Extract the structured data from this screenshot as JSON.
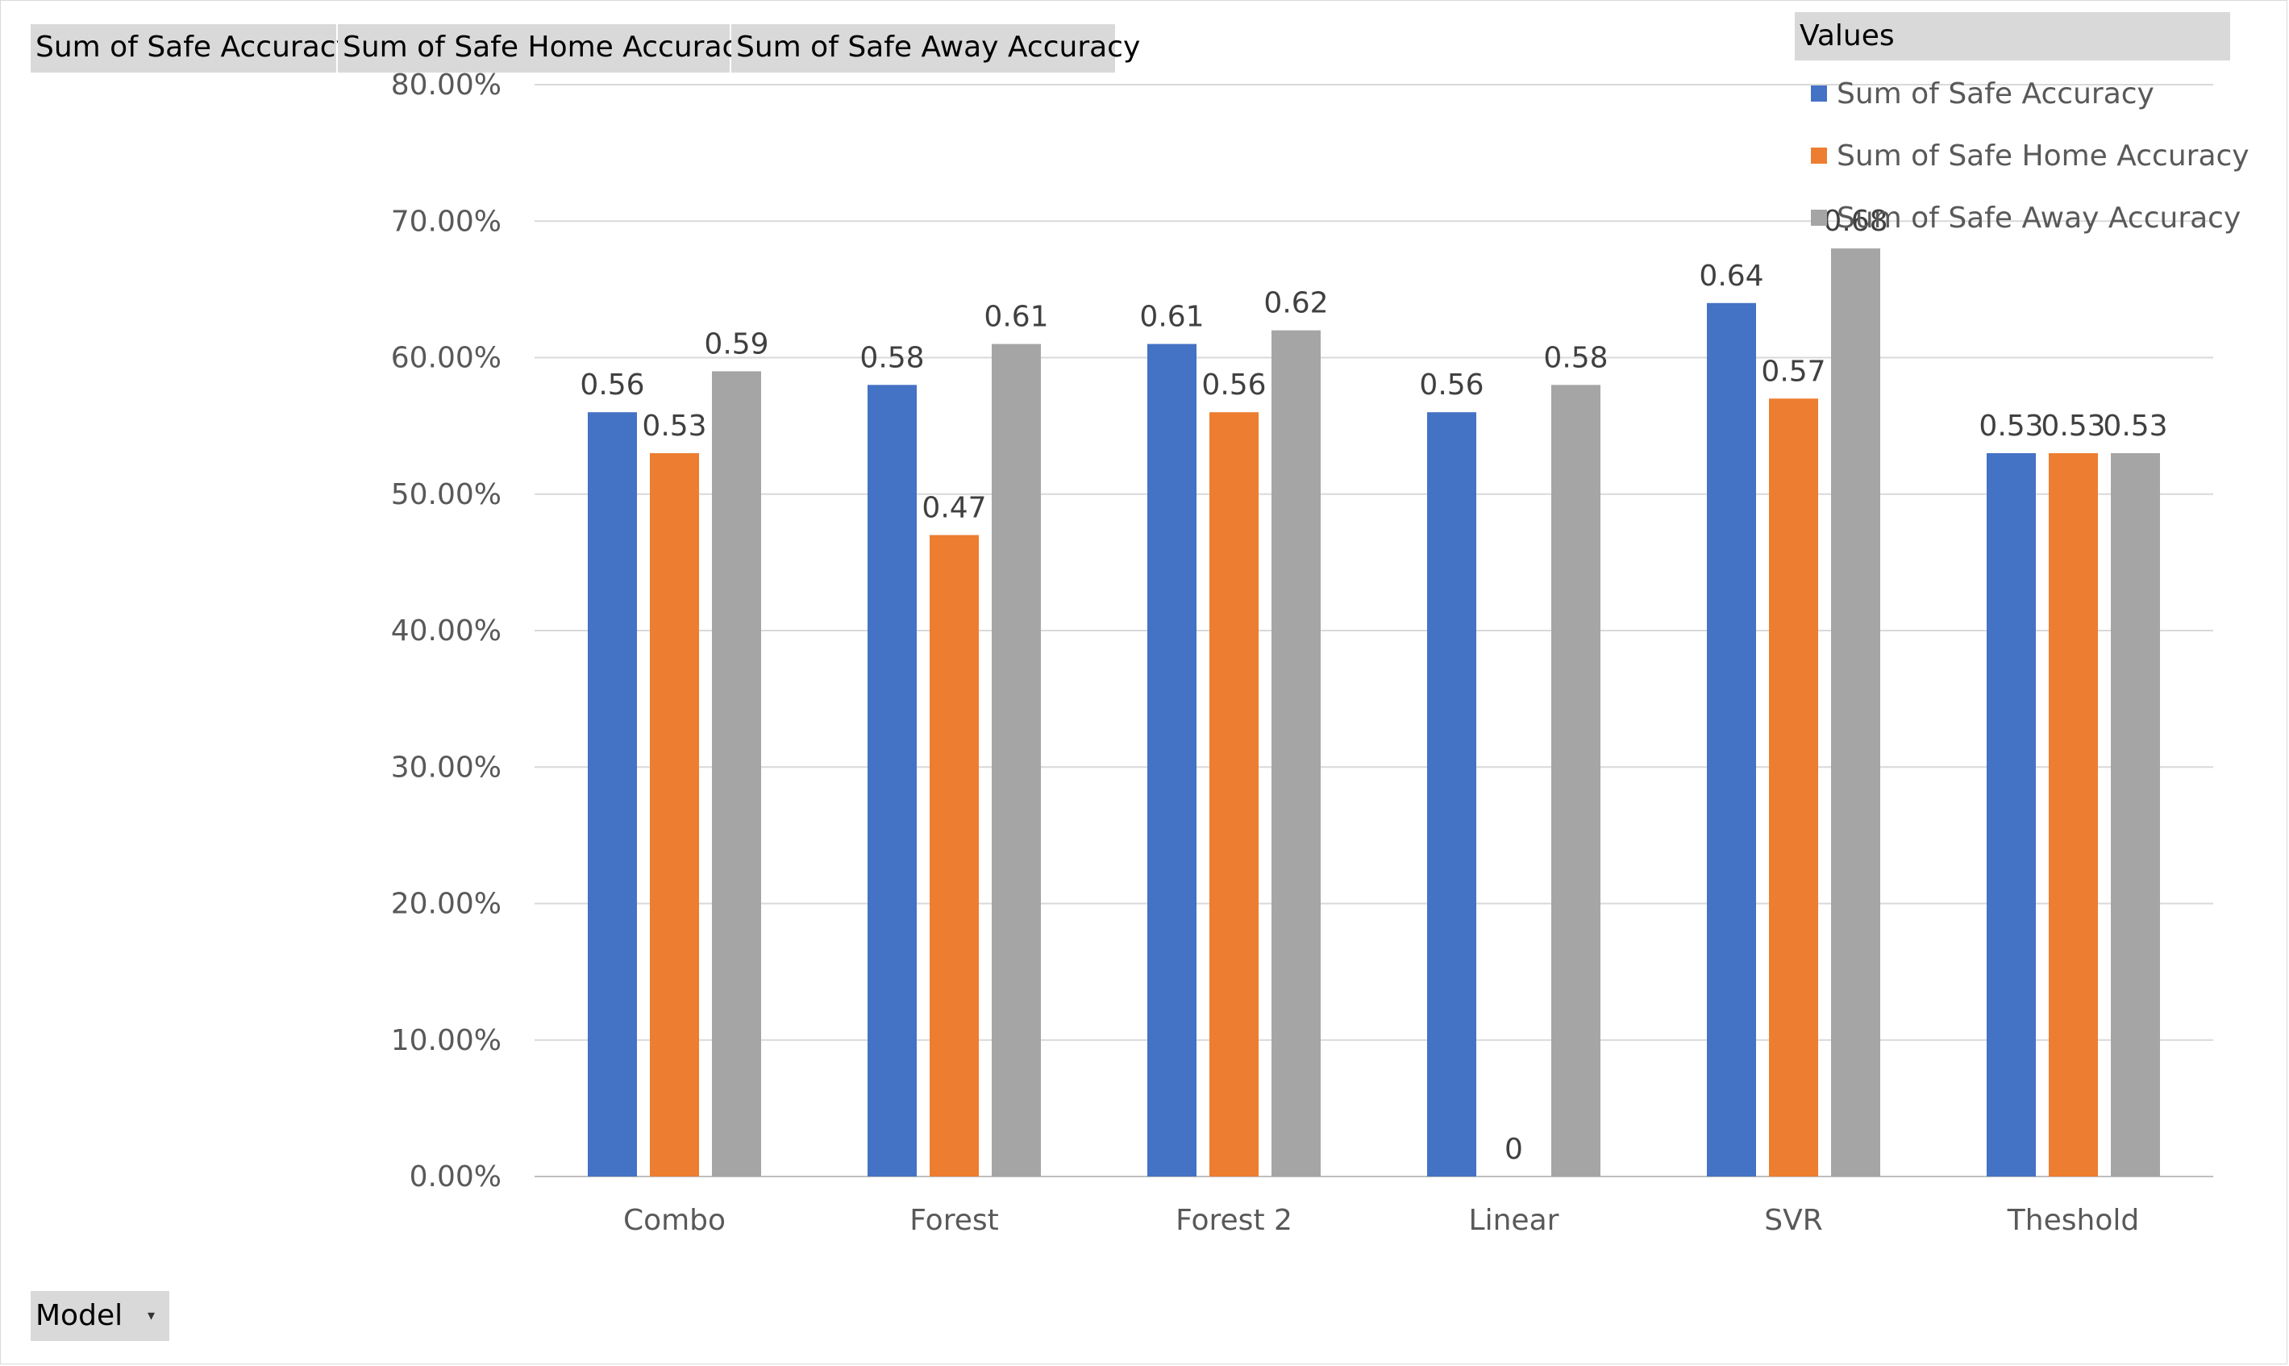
{
  "field_buttons": {
    "values": [
      "Sum of Safe Accuracy",
      "Sum of Safe Home Accuracy",
      "Sum of Safe Away Accuracy"
    ],
    "row_field": "Model",
    "row_field_icon": "dropdown-arrow-icon"
  },
  "legend": {
    "title": "Values",
    "placement": "top-right"
  },
  "chart_data": {
    "type": "bar",
    "categories": [
      "Combo",
      "Forest",
      "Forest 2",
      "Linear",
      "SVR",
      "Theshold"
    ],
    "series": [
      {
        "name": "Sum of Safe Accuracy",
        "color": "#4472c4",
        "values": [
          0.56,
          0.58,
          0.61,
          0.56,
          0.64,
          0.53
        ]
      },
      {
        "name": "Sum of Safe Home Accuracy",
        "color": "#ed7d31",
        "values": [
          0.53,
          0.47,
          0.56,
          0,
          0.57,
          0.53
        ]
      },
      {
        "name": "Sum of Safe Away Accuracy",
        "color": "#a5a5a5",
        "values": [
          0.59,
          0.61,
          0.62,
          0.58,
          0.68,
          0.53
        ]
      }
    ],
    "data_labels": [
      [
        "0.56",
        "0.58",
        "0.61",
        "0.56",
        "0.64",
        "0.53"
      ],
      [
        "0.53",
        "0.47",
        "0.56",
        "0",
        "0.57",
        "0.53"
      ],
      [
        "0.59",
        "0.61",
        "0.62",
        "0.58",
        "0.68",
        "0.53"
      ]
    ],
    "ylim": [
      0,
      0.8
    ],
    "yticks": [
      0,
      0.1,
      0.2,
      0.3,
      0.4,
      0.5,
      0.6,
      0.7,
      0.8
    ],
    "ytick_labels": [
      "0.00%",
      "10.00%",
      "20.00%",
      "30.00%",
      "40.00%",
      "50.00%",
      "60.00%",
      "70.00%",
      "80.00%"
    ],
    "grid": true
  }
}
